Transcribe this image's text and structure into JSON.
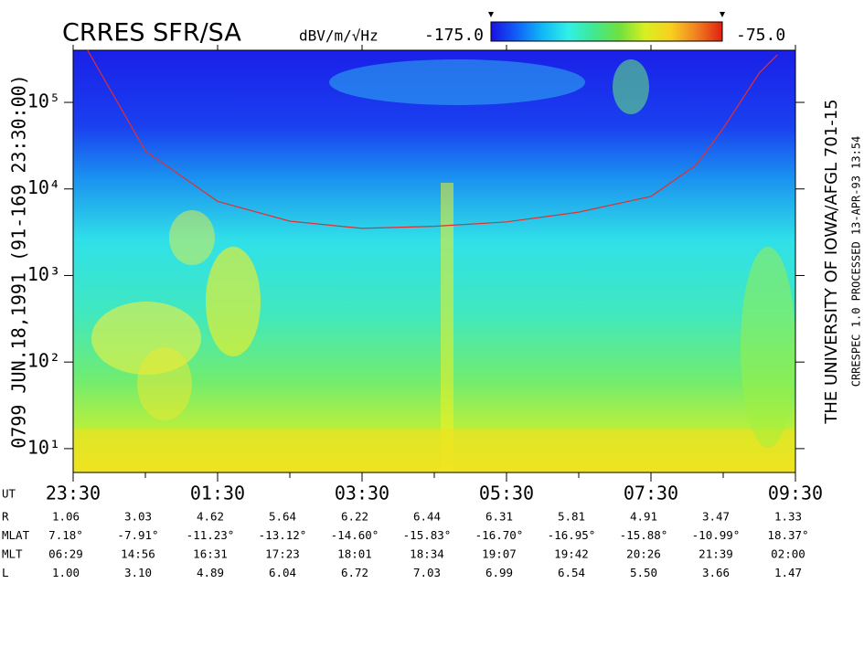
{
  "chart_data": {
    "type": "spectrogram",
    "title": "CRRES SFR/SA",
    "left_label": "0799  JUN.18,1991  (91-169 23:30:00)",
    "right_label": "THE UNIVERSITY OF IOWA/AFGL 701-15",
    "right_sublabel": "CRRESPEC 1.0   PROCESSED 13-APR-93  13:54",
    "colorbar": {
      "label": "dBV/m/√Hz",
      "clim": [
        -175,
        -75
      ],
      "ticks": [
        {
          "value": -175,
          "label": "-175.0"
        },
        {
          "value": -75,
          "label": "-75.0"
        }
      ],
      "colormap": [
        "#1a10e0",
        "#1060f8",
        "#10b8f8",
        "#30f0e8",
        "#40e890",
        "#70e040",
        "#d8f020",
        "#f8d020",
        "#f08020",
        "#e02010"
      ]
    },
    "log_y": true,
    "ylim": [
      5.3,
      400000
    ],
    "yticks": [
      {
        "value": 10,
        "label": "10¹"
      },
      {
        "value": 100,
        "label": "10²"
      },
      {
        "value": 1000,
        "label": "10³"
      },
      {
        "value": 10000,
        "label": "10⁴"
      },
      {
        "value": 100000,
        "label": "10⁵"
      }
    ],
    "xlim": [
      23.5,
      33.5
    ],
    "xticks": [
      {
        "value": 23.5,
        "label": "23:30"
      },
      {
        "value": 25.5,
        "label": "01:30"
      },
      {
        "value": 27.5,
        "label": "03:30"
      },
      {
        "value": 29.5,
        "label": "05:30"
      },
      {
        "value": 31.5,
        "label": "07:30"
      },
      {
        "value": 33.5,
        "label": "09:30"
      }
    ],
    "xminorticks": [
      24.5,
      26.5,
      28.5,
      30.5,
      32.5
    ],
    "lines": [
      {
        "color": "#e03030",
        "x": [
          23.7,
          24.1,
          24.5,
          25.5,
          26.5,
          27.5,
          28.5,
          29.5,
          30.5,
          31.5,
          32.13,
          32.5,
          33.0,
          33.25
        ],
        "values": [
          400000,
          105000,
          27500,
          7200,
          4240,
          3500,
          3700,
          4160,
          5400,
          8200,
          19000,
          50100,
          219000,
          355000
        ]
      }
    ],
    "ephemeris": {
      "ut_label": "UT",
      "rows": [
        {
          "label": "R",
          "values": [
            "1.06",
            "3.03",
            "4.62",
            "5.64",
            "6.22",
            "6.44",
            "6.31",
            "5.81",
            "4.91",
            "3.47",
            "1.33"
          ]
        },
        {
          "label": "MLAT",
          "values": [
            "7.18°",
            "-7.91°",
            "-11.23°",
            "-13.12°",
            "-14.60°",
            "-15.83°",
            "-16.70°",
            "-16.95°",
            "-15.88°",
            "-10.99°",
            "18.37°"
          ]
        },
        {
          "label": "MLT",
          "values": [
            "06:29",
            "14:56",
            "16:31",
            "17:23",
            "18:01",
            "18:34",
            "19:07",
            "19:42",
            "20:26",
            "21:39",
            "02:00"
          ]
        },
        {
          "label": "L",
          "values": [
            "1.00",
            "3.10",
            "4.89",
            "6.04",
            "6.72",
            "7.03",
            "6.99",
            "6.54",
            "5.50",
            "3.66",
            "1.47"
          ]
        }
      ]
    }
  }
}
